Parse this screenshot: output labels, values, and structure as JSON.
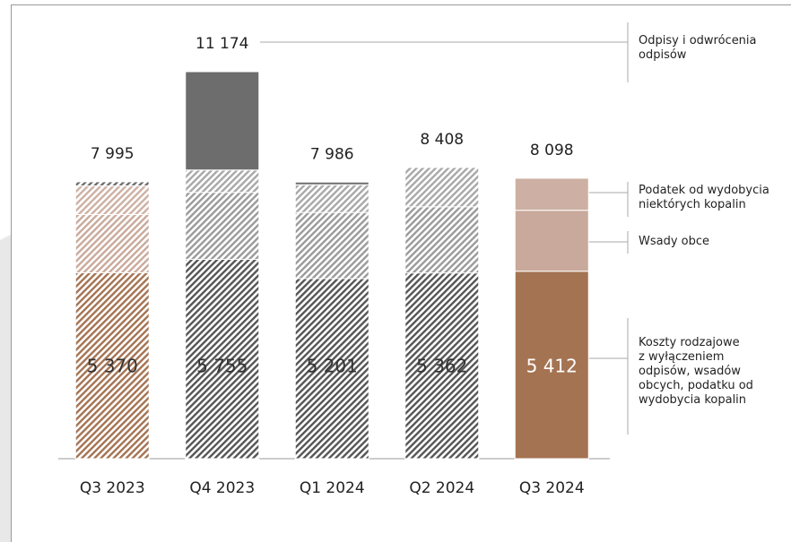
{
  "chart_data": {
    "type": "stacked-bar",
    "categories": [
      "Q3 2023",
      "Q4 2023",
      "Q1 2024",
      "Q2 2024",
      "Q3 2024"
    ],
    "series": [
      {
        "name": "Koszty rodzajowe\nz wyłączeniem\nodpisów,  wsadów\nobcych, podatku od\nwydobycia kopalin",
        "color": "#a47352",
        "values": [
          5370,
          5755,
          5201,
          5362,
          5412
        ],
        "value_labels": [
          "5 370",
          "5 755",
          "5 201",
          "5 362",
          "5 412"
        ]
      },
      {
        "name": "Wsady obce",
        "color": "#c9a99b",
        "values": [
          1680,
          1935,
          1908,
          1911,
          1760
        ]
      },
      {
        "name": "Podatek od wydobycia\nniektórych kopalin",
        "color": "#cdb0a3",
        "values": [
          825,
          645,
          800,
          1135,
          926
        ]
      },
      {
        "name": "Odpisy i odwrócenia\nodpisów",
        "color": "#6d6d6d",
        "values": [
          120,
          2839,
          77,
          0,
          0
        ]
      }
    ],
    "totals": [
      7995,
      11174,
      7986,
      8408,
      8098
    ],
    "totals_labels": [
      "7 995",
      "11 174",
      "7 986",
      "8 408",
      "8 098"
    ],
    "bar_fills": [
      "hatch-color",
      "hatch-grey",
      "hatch-grey",
      "hatch-grey",
      "solid"
    ]
  }
}
